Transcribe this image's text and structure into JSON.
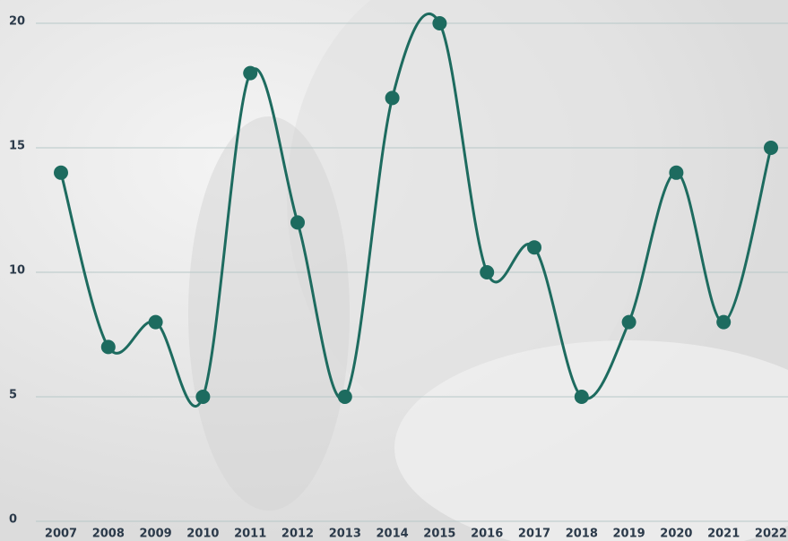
{
  "chart_data": {
    "type": "line",
    "categories": [
      "2007",
      "2008",
      "2009",
      "2010",
      "2011",
      "2012",
      "2013",
      "2014",
      "2015",
      "2016",
      "2017",
      "2018",
      "2019",
      "2020",
      "2021",
      "2022"
    ],
    "values": [
      14,
      7,
      8,
      5,
      18,
      12,
      5,
      17,
      20,
      10,
      11,
      5,
      8,
      14,
      8,
      15
    ],
    "color": "#1d6b5f",
    "ylim": [
      0,
      20
    ],
    "yticks": [
      0,
      5,
      10,
      15,
      20
    ],
    "grid": true,
    "smooth": true
  }
}
